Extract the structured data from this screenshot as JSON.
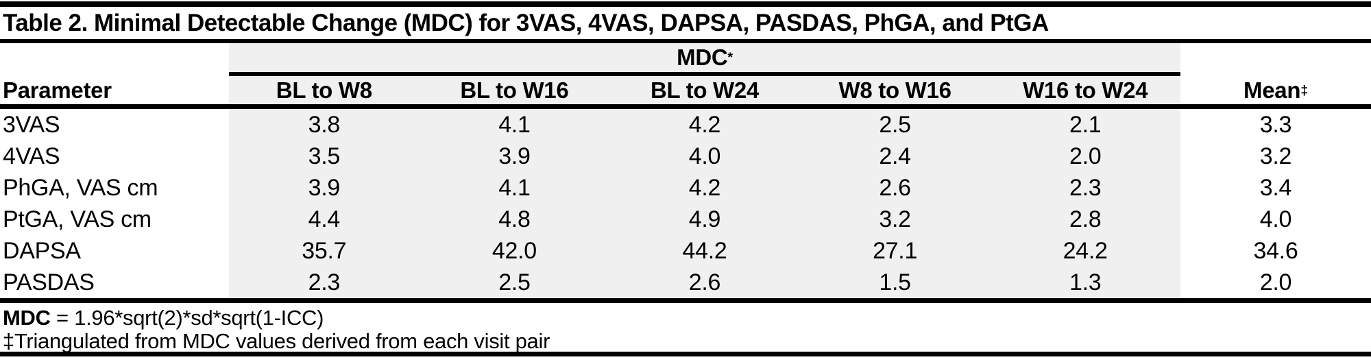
{
  "title": "Table 2. Minimal Detectable Change (MDC) for 3VAS, 4VAS, DAPSA, PASDAS, PhGA, and PtGA",
  "table": {
    "group_header": {
      "label": "MDC",
      "sup": "*"
    },
    "columns": {
      "parameter": "Parameter",
      "c1": "BL to W8",
      "c2": "BL to W16",
      "c3": "BL to W24",
      "c4": "W8 to W16",
      "c5": "W16 to W24",
      "mean_label": "Mean",
      "mean_sup": "‡"
    },
    "rows": [
      {
        "param": "3VAS",
        "v1": "3.8",
        "v2": "4.1",
        "v3": "4.2",
        "v4": "2.5",
        "v5": "2.1",
        "mean": "3.3"
      },
      {
        "param": "4VAS",
        "v1": "3.5",
        "v2": "3.9",
        "v3": "4.0",
        "v4": "2.4",
        "v5": "2.0",
        "mean": "3.2"
      },
      {
        "param": "PhGA, VAS cm",
        "v1": "3.9",
        "v2": "4.1",
        "v3": "4.2",
        "v4": "2.6",
        "v5": "2.3",
        "mean": "3.4"
      },
      {
        "param": "PtGA, VAS cm",
        "v1": "4.4",
        "v2": "4.8",
        "v3": "4.9",
        "v4": "3.2",
        "v5": "2.8",
        "mean": "4.0"
      },
      {
        "param": "DAPSA",
        "v1": "35.7",
        "v2": "42.0",
        "v3": "44.2",
        "v4": "27.1",
        "v5": "24.2",
        "mean": "34.6"
      },
      {
        "param": "PASDAS",
        "v1": "2.3",
        "v2": "2.5",
        "v3": "2.6",
        "v4": "1.5",
        "v5": "1.3",
        "mean": "2.0"
      }
    ],
    "footnotes": {
      "f1_bold": "MDC",
      "f1_rest": " = 1.96*sqrt(2)*sd*sqrt(1-ICC)",
      "f2": "‡Triangulated from MDC values derived from each visit pair"
    }
  },
  "colors": {
    "band": "#f0f0f0",
    "rule": "#000000",
    "text": "#000000",
    "background": "#ffffff"
  }
}
